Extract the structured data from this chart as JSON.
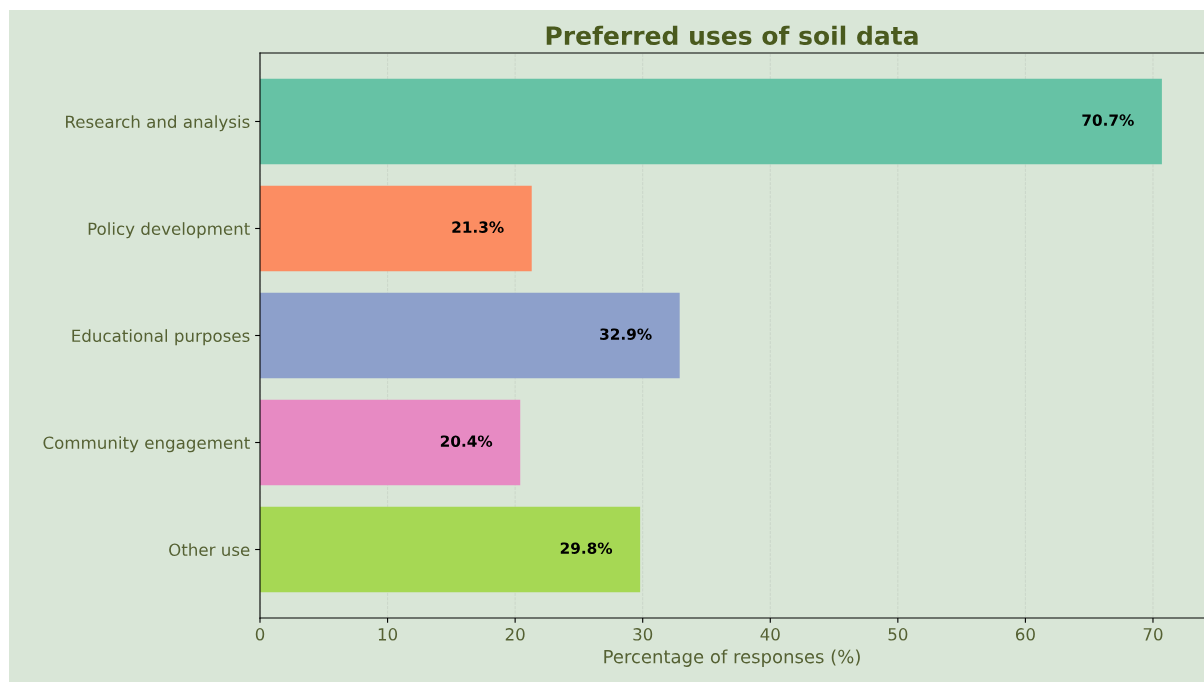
{
  "chart_data": {
    "type": "bar",
    "orientation": "horizontal",
    "title": "Preferred uses of soil data",
    "xlabel": "Percentage of responses (%)",
    "categories": [
      "Research and analysis",
      "Policy development",
      "Educational purposes",
      "Community engagement",
      "Other use"
    ],
    "values": [
      70.7,
      21.3,
      32.9,
      20.4,
      29.8
    ],
    "colors": [
      "#66c2a5",
      "#fc8d62",
      "#8da0cb",
      "#e78ac3",
      "#a6d854"
    ],
    "value_labels": [
      "70.7%",
      "21.3%",
      "32.9%",
      "20.4%",
      "29.8%"
    ],
    "xlim": [
      0,
      74
    ],
    "xticks": [
      0,
      10,
      20,
      30,
      40,
      50,
      60,
      70
    ],
    "grid": "x",
    "legend": false
  }
}
